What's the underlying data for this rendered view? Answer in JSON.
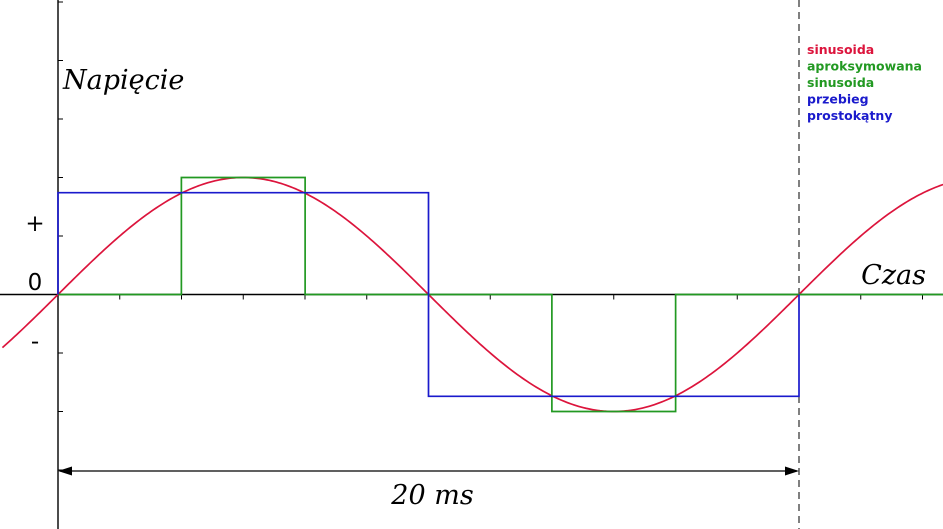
{
  "chart_data": {
    "type": "line",
    "title": "",
    "ylabel": "Napięcie",
    "xlabel": "Czas",
    "y_sign_labels": {
      "plus": "+",
      "zero": "0",
      "minus": "-"
    },
    "period_label": "20 ms",
    "x_unit": "ms",
    "xlim": [
      -1.5,
      24
    ],
    "ylim": [
      -1.5,
      2.5
    ],
    "grid": false,
    "legend_position": "top-right",
    "series": [
      {
        "name": "sinusoida",
        "color": "#dc143c",
        "kind": "function",
        "function": "sin",
        "amplitude": 1.0,
        "period": 20,
        "x_range": [
          -1.5,
          24
        ]
      },
      {
        "name": "sinusoida aproksymowana",
        "color": "#229922",
        "kind": "step",
        "points": [
          [
            0,
            0
          ],
          [
            3.33,
            0
          ],
          [
            3.33,
            1.0
          ],
          [
            6.67,
            1.0
          ],
          [
            6.67,
            0
          ],
          [
            13.33,
            0
          ],
          [
            13.33,
            -1.0
          ],
          [
            16.67,
            -1.0
          ],
          [
            16.67,
            0
          ],
          [
            20,
            0
          ],
          [
            24,
            0
          ]
        ]
      },
      {
        "name": "przebieg prostokątny",
        "color": "#1a1acc",
        "kind": "step",
        "points": [
          [
            0,
            0
          ],
          [
            0,
            0.87
          ],
          [
            10,
            0.87
          ],
          [
            10,
            -0.87
          ],
          [
            20,
            -0.87
          ],
          [
            20,
            0
          ]
        ]
      }
    ],
    "legend": [
      {
        "lines": [
          "sinusoida"
        ],
        "color": "#dc143c"
      },
      {
        "lines": [
          "aproksymowana",
          "sinusoida"
        ],
        "color": "#229922"
      },
      {
        "lines": [
          "przebieg",
          "prostokątny"
        ],
        "color": "#1a1acc"
      }
    ]
  }
}
